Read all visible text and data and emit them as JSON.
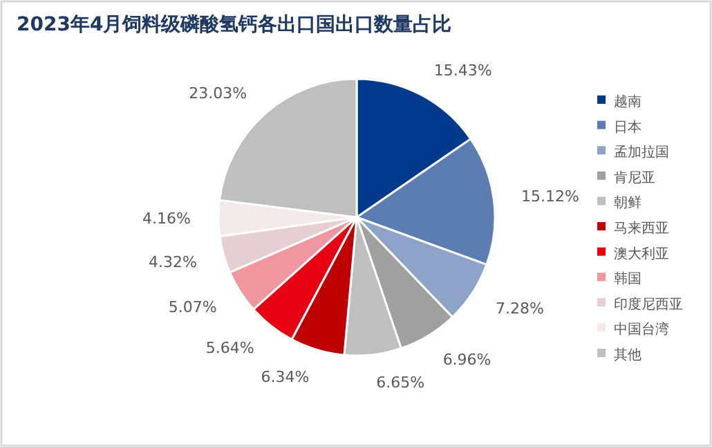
{
  "chart_data": {
    "type": "pie",
    "title": "2023年4月饲料级磷酸氢钙各出口国出口数量占比",
    "categories": [
      "越南",
      "日本",
      "孟加拉国",
      "肯尼亚",
      "朝鲜",
      "马来西亚",
      "澳大利亚",
      "韩国",
      "印度尼西亚",
      "中国台湾",
      "其他"
    ],
    "values": [
      15.43,
      15.12,
      7.28,
      6.96,
      6.65,
      6.34,
      5.64,
      5.07,
      4.32,
      4.16,
      23.03
    ],
    "value_labels": [
      "15.43%",
      "15.12%",
      "7.28%",
      "6.96%",
      "6.65%",
      "6.34%",
      "5.64%",
      "5.07%",
      "4.32%",
      "4.16%",
      "23.03%"
    ],
    "colors": [
      "#003a8c",
      "#5b7db1",
      "#8ea3c8",
      "#a0a0a0",
      "#bfbfbf",
      "#c00000",
      "#e60012",
      "#f0969e",
      "#e6cfd2",
      "#f2eaea",
      "#bfbfbf"
    ],
    "legend": "right"
  }
}
